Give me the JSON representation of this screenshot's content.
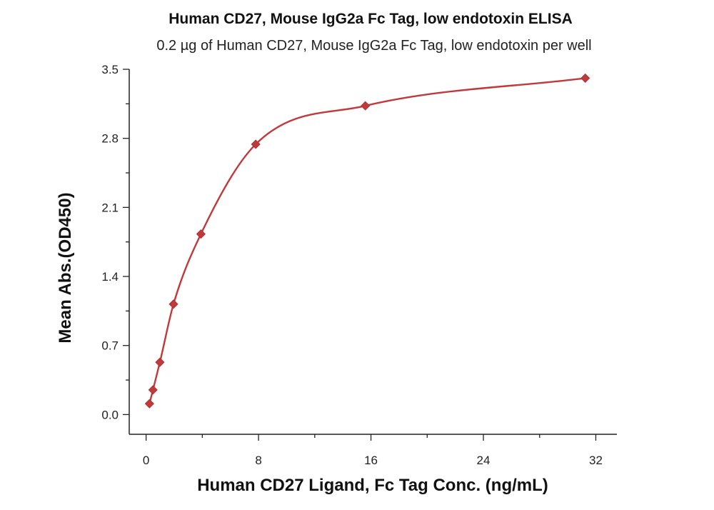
{
  "chart_data": {
    "type": "scatter",
    "title": "Human CD27, Mouse IgG2a Fc Tag, low endotoxin ELISA",
    "subtitle": "0.2 µg of Human CD27, Mouse IgG2a Fc Tag, low endotoxin per well",
    "xlabel": "Human CD27 Ligand, Fc Tag Conc. (ng/mL)",
    "ylabel": "Mean Abs.(OD450)",
    "xlim": [
      -1.2,
      33.5
    ],
    "ylim": [
      -0.2,
      3.5
    ],
    "x_ticks": [
      0,
      8,
      16,
      24,
      32
    ],
    "x_tick_labels": [
      "0",
      "8",
      "16",
      "24",
      "32"
    ],
    "y_ticks": [
      0.0,
      0.7,
      1.4,
      2.1,
      2.8,
      3.5
    ],
    "y_tick_labels": [
      "0.0",
      "0.7",
      "1.4",
      "2.1",
      "2.8",
      "3.5"
    ],
    "grid": false,
    "legend": "none",
    "color": "#c0393b",
    "series": [
      {
        "marker": "diamond",
        "x": [
          0.24,
          0.49,
          0.98,
          1.95,
          3.9,
          7.8,
          15.6,
          31.25
        ],
        "y": [
          0.11,
          0.25,
          0.53,
          1.12,
          1.83,
          2.74,
          3.13,
          3.41
        ],
        "fit": "4PL"
      }
    ]
  }
}
